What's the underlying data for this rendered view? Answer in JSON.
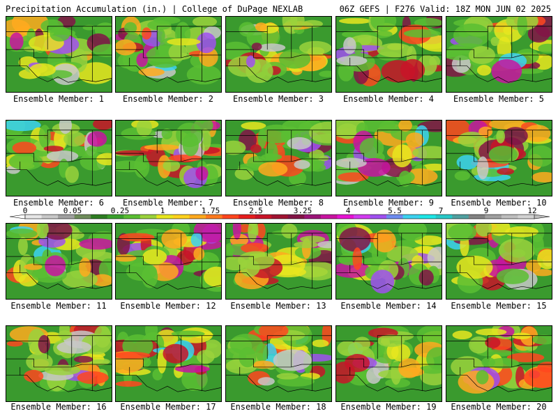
{
  "header": {
    "left": "Precipitation Accumulation (in.) | College of DuPage NEXLAB",
    "right": "06Z GEFS | F276 Valid: 18Z MON JUN 02 2025"
  },
  "members": [
    {
      "label": "Ensemble Member: 1"
    },
    {
      "label": "Ensemble Member: 2"
    },
    {
      "label": "Ensemble Member: 3"
    },
    {
      "label": "Ensemble Member: 4"
    },
    {
      "label": "Ensemble Member: 5"
    },
    {
      "label": "Ensemble Member: 6"
    },
    {
      "label": "Ensemble Member: 7"
    },
    {
      "label": "Ensemble Member: 8"
    },
    {
      "label": "Ensemble Member: 9"
    },
    {
      "label": "Ensemble Member: 10"
    },
    {
      "label": "Ensemble Member: 11"
    },
    {
      "label": "Ensemble Member: 12"
    },
    {
      "label": "Ensemble Member: 13"
    },
    {
      "label": "Ensemble Member: 14"
    },
    {
      "label": "Ensemble Member: 15"
    },
    {
      "label": "Ensemble Member: 16"
    },
    {
      "label": "Ensemble Member: 17"
    },
    {
      "label": "Ensemble Member: 18"
    },
    {
      "label": "Ensemble Member: 19"
    },
    {
      "label": "Ensemble Member: 20"
    }
  ],
  "colorbar": {
    "tick_labels": [
      "0",
      "0.05",
      "0.25",
      "1",
      "1.75",
      "2.5",
      "3.25",
      "4",
      "5.5",
      "7",
      "9",
      "12"
    ],
    "colors": [
      "#e6e6e6",
      "#c8c8c8",
      "#a0a0a0",
      "#6e8c5a",
      "#2e7d22",
      "#3aa02c",
      "#5abe32",
      "#9ad23c",
      "#e8e61e",
      "#ffd21e",
      "#ffaa1e",
      "#ff7a1e",
      "#ff461e",
      "#e61e1e",
      "#c81428",
      "#a01432",
      "#821446",
      "#9b1478",
      "#c814a0",
      "#e614d2",
      "#d23cf0",
      "#a050f0",
      "#6e8cf0",
      "#3cd2f0",
      "#1ee6e6",
      "#28c8c8",
      "#50a0a0",
      "#828282",
      "#a0a0a0",
      "#bebebe",
      "#d2d2d2"
    ]
  },
  "map_colors": {
    "land": "#3a9a2e",
    "border": "#000000",
    "blob_palette": [
      "#5abe32",
      "#9ad23c",
      "#e8e61e",
      "#ffaa1e",
      "#ff461e",
      "#c81428",
      "#821446",
      "#c814a0",
      "#a050f0",
      "#3cd2f0",
      "#c8c8c8"
    ]
  }
}
